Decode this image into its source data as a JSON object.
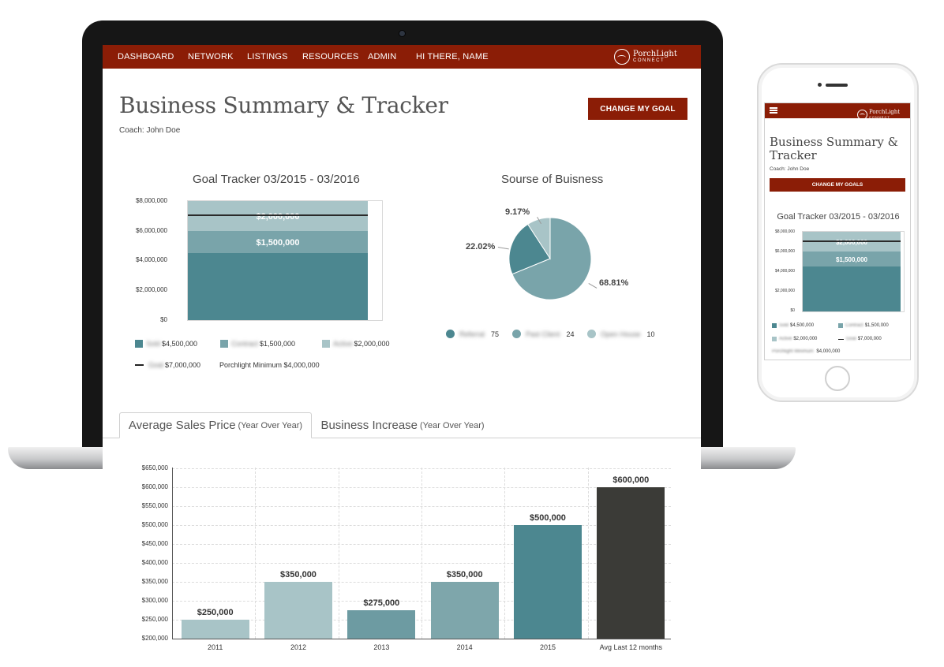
{
  "nav": {
    "items": [
      "DASHBOARD",
      "NETWORK",
      "LISTINGS",
      "RESOURCES",
      "ADMIN",
      "HI THERE, NAME"
    ],
    "brand_name": "PorchLight",
    "brand_sub": "CONNECT"
  },
  "page": {
    "title": "Business Summary & Tracker",
    "coach": "Coach: John Doe",
    "change_goal_label": "CHANGE MY GOAL"
  },
  "goal_tracker": {
    "title": "Goal Tracker 03/2015 - 03/2016",
    "y_ticks": [
      "$8,000,000",
      "$6,000,000",
      "$4,000,000",
      "$2,000,000",
      "$0"
    ],
    "segment_labels": [
      "$1,500,000",
      "$2,000,000"
    ],
    "legend": [
      {
        "name": "Sold",
        "value": "$4,500,000",
        "color": "#4c8790"
      },
      {
        "name": "Contract",
        "value": "$1,500,000",
        "color": "#79a4aa"
      },
      {
        "name": "Active",
        "value": "$2,000,000",
        "color": "#a8c4c7"
      },
      {
        "name": "Goal",
        "value": "$7,000,000",
        "color": "#222222"
      }
    ],
    "minimum_label": "Porchlight Minimum",
    "minimum_value": "$4,000,000"
  },
  "source": {
    "title": "Sourse of Buisness",
    "slice_labels": [
      "9.17%",
      "22.02%",
      "68.81%"
    ],
    "legend": [
      {
        "name": "Referral",
        "count": "75",
        "color": "#4c8790"
      },
      {
        "name": "Past Client",
        "count": "24",
        "color": "#79a4aa"
      },
      {
        "name": "Open House",
        "count": "10",
        "color": "#a8c4c7"
      }
    ]
  },
  "tabs": [
    {
      "label": "Average Sales Price",
      "suffix": "(Year Over Year)"
    },
    {
      "label": "Business Increase",
      "suffix": "(Year Over Year)"
    }
  ],
  "mobile": {
    "title": "Business Summary & Tracker",
    "coach": "Coach: John Doe",
    "change_goal_label": "CHANGE MY GOALS"
  },
  "chart_data": [
    {
      "type": "bar",
      "title": "Goal Tracker 03/2015 - 03/2016",
      "stacked": true,
      "categories": [
        ""
      ],
      "series": [
        {
          "name": "Sold",
          "values": [
            4500000
          ]
        },
        {
          "name": "Contract",
          "values": [
            1500000
          ]
        },
        {
          "name": "Active",
          "values": [
            2000000
          ]
        }
      ],
      "goal_line": 7000000,
      "ylim": [
        0,
        8000000
      ],
      "y_ticks": [
        0,
        2000000,
        4000000,
        6000000,
        8000000
      ]
    },
    {
      "type": "pie",
      "title": "Sourse of Buisness",
      "categories": [
        "Referral",
        "Past Client",
        "Open House"
      ],
      "values": [
        68.81,
        22.02,
        9.17
      ],
      "counts": [
        75,
        24,
        10
      ],
      "colors": [
        "#79a4aa",
        "#4c8790",
        "#a8c4c7"
      ]
    },
    {
      "type": "bar",
      "title": "Average Sales Price (Year Over Year)",
      "categories": [
        "2011",
        "2012",
        "2013",
        "2014",
        "2015",
        "Avg Last 12 months"
      ],
      "values": [
        250000,
        350000,
        275000,
        350000,
        500000,
        600000
      ],
      "value_labels": [
        "$250,000",
        "$350,000",
        "$275,000",
        "$350,000",
        "$500,000",
        "$600,000"
      ],
      "colors": [
        "#a8c4c7",
        "#a8c4c7",
        "#6d9ba2",
        "#7ea6ab",
        "#4c8790",
        "#3b3b37"
      ],
      "ylim": [
        200000,
        650000
      ],
      "y_ticks": [
        "$650,000",
        "$600,000",
        "$550,000",
        "$500,000",
        "$450,000",
        "$400,000",
        "$350,000",
        "$300,000",
        "$250,000",
        "$200,000"
      ],
      "grid": true
    }
  ]
}
